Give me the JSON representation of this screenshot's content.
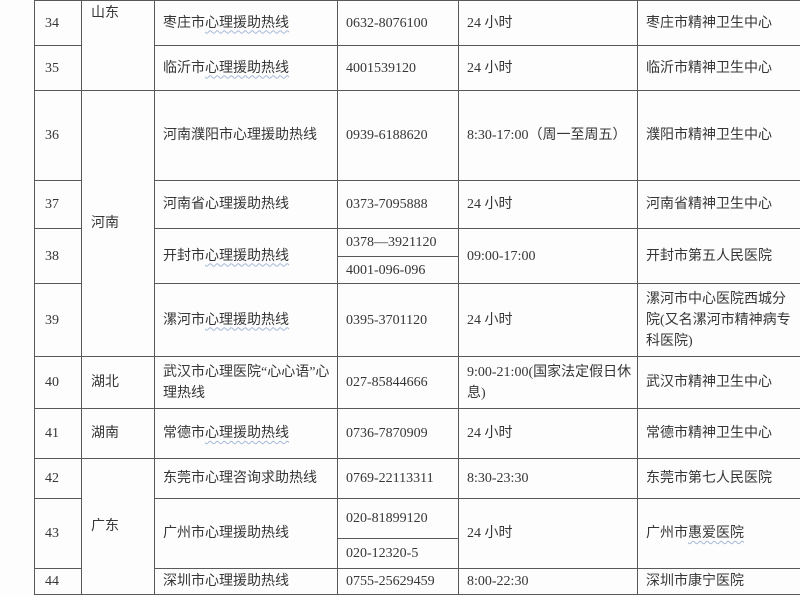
{
  "colors": {
    "background": "#fdfdfd",
    "grid_line": "#595959",
    "text": "#363636",
    "wavy_underline": "#a3b8d8"
  },
  "table": {
    "rows": [
      {
        "no": "34",
        "province": {
          "label": "山东",
          "rowspan": 2,
          "valign": "top"
        },
        "name": [
          {
            "text": "枣庄市"
          },
          {
            "text": "心理援助热线",
            "wavy": true
          }
        ],
        "phones": [
          "0632-8076100"
        ],
        "hours": "24 小时",
        "org": [
          {
            "text": "枣庄市精神卫生中心"
          }
        ]
      },
      {
        "no": "35",
        "name": [
          {
            "text": "临沂市"
          },
          {
            "text": "心理援助热线",
            "wavy": true
          }
        ],
        "phones": [
          "4001539120"
        ],
        "hours": "24 小时",
        "org": [
          {
            "text": "临沂市精神卫生中心"
          }
        ]
      },
      {
        "no": "36",
        "province": {
          "label": "河南",
          "rowspan": 4
        },
        "name": [
          {
            "text": "河南濮阳市心理援助热线"
          }
        ],
        "phones": [
          "0939-6188620"
        ],
        "hours": "8:30-17:00（周一至周五）",
        "org": [
          {
            "text": "濮阳市精神卫生中心"
          }
        ]
      },
      {
        "no": "37",
        "name": [
          {
            "text": "河南省心理援助热线"
          }
        ],
        "phones": [
          "0373-7095888"
        ],
        "hours": "24 小时",
        "org": [
          {
            "text": "河南省精神卫生中心"
          }
        ]
      },
      {
        "no": "38",
        "name": [
          {
            "text": "开封市"
          },
          {
            "text": "心理援助热线",
            "wavy": true
          }
        ],
        "phones": [
          "0378—3921120",
          "4001-096-096"
        ],
        "hours": "09:00-17:00",
        "org": [
          {
            "text": "开封市第五人民医院"
          }
        ]
      },
      {
        "no": "39",
        "name": [
          {
            "text": "漯河市"
          },
          {
            "text": "心理援助热线",
            "wavy": true
          }
        ],
        "phones": [
          "0395-3701120"
        ],
        "hours": "24 小时",
        "org": [
          {
            "text": "漯河市中心医院西城分院(又名漯河市精神病专科医院)"
          }
        ]
      },
      {
        "no": "40",
        "province": {
          "label": "湖北",
          "rowspan": 1
        },
        "name": [
          {
            "text": "武汉市心理医院“心心语”心理热线"
          }
        ],
        "phones": [
          "027-85844666"
        ],
        "hours": "9:00-21:00(国家法定假日休息)",
        "org": [
          {
            "text": "武汉市精神卫生中心"
          }
        ]
      },
      {
        "no": "41",
        "province": {
          "label": "湖南",
          "rowspan": 1
        },
        "name": [
          {
            "text": "常德市"
          },
          {
            "text": "心理援助热线",
            "wavy": true
          }
        ],
        "phones": [
          "0736-7870909"
        ],
        "hours": "24 小时",
        "org": [
          {
            "text": "常德市精神卫生中心"
          }
        ]
      },
      {
        "no": "42",
        "province": {
          "label": "广东",
          "rowspan": 3
        },
        "name": [
          {
            "text": "东莞市心理咨询求助热线"
          }
        ],
        "phones": [
          "0769-22113311"
        ],
        "hours": "8:30-23:30",
        "org": [
          {
            "text": "东莞市第七人民医院"
          }
        ]
      },
      {
        "no": "43",
        "name": [
          {
            "text": "广州市心理援助热线"
          }
        ],
        "phones": [
          "020-81899120",
          "020-12320-5"
        ],
        "hours": "24 小时",
        "org": [
          {
            "text": "广州市"
          },
          {
            "text": "惠爱医院",
            "wavy": true
          }
        ]
      },
      {
        "no": "44",
        "name": [
          {
            "text": "深圳市心理援助热线"
          }
        ],
        "phones": [
          "0755-25629459"
        ],
        "hours": "8:00-22:30",
        "org": [
          {
            "text": "深圳市康宁医院"
          }
        ]
      }
    ]
  }
}
